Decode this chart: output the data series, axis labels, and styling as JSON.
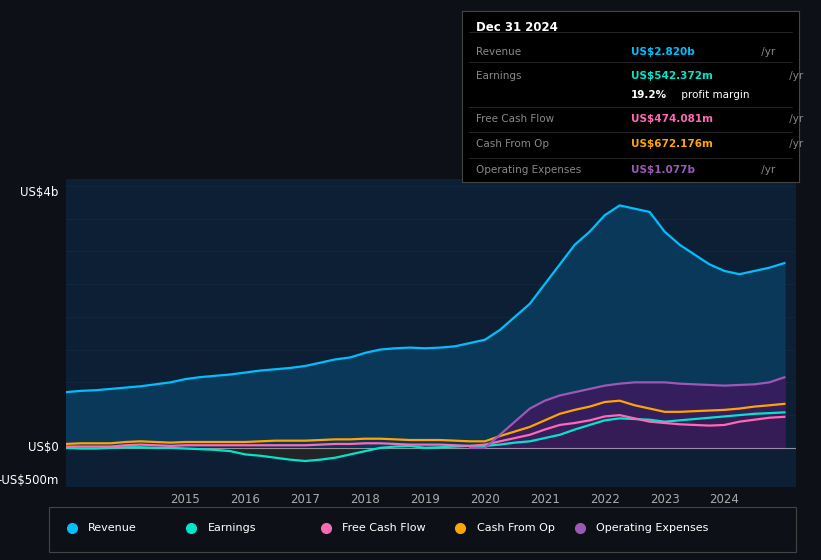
{
  "bg_color": "#0d1117",
  "plot_bg_color": "#0d1f35",
  "title": "Dec 31 2024",
  "info_box_rows": [
    {
      "label": "Revenue",
      "value": "US$2.820b",
      "value_color": "#00bfff"
    },
    {
      "label": "Earnings",
      "value": "US$542.372m",
      "value_color": "#00e5cc"
    },
    {
      "label": "",
      "value": "19.2% profit margin",
      "value_color": "#ffffff"
    },
    {
      "label": "Free Cash Flow",
      "value": "US$474.081m",
      "value_color": "#ff69b4"
    },
    {
      "label": "Cash From Op",
      "value": "US$672.176m",
      "value_color": "#ffa500"
    },
    {
      "label": "Operating Expenses",
      "value": "US$1.077b",
      "value_color": "#9b59b6"
    }
  ],
  "ylabel_top": "US$4b",
  "ylabel_zero": "US$0",
  "ylabel_bottom": "-US$500m",
  "x_ticks": [
    2015,
    2016,
    2017,
    2018,
    2019,
    2020,
    2021,
    2022,
    2023,
    2024
  ],
  "revenue": {
    "color": "#00bfff",
    "fill_color": "#0a3a5c",
    "x": [
      2013.0,
      2013.25,
      2013.5,
      2013.75,
      2014.0,
      2014.25,
      2014.5,
      2014.75,
      2015.0,
      2015.25,
      2015.5,
      2015.75,
      2016.0,
      2016.25,
      2016.5,
      2016.75,
      2017.0,
      2017.25,
      2017.5,
      2017.75,
      2018.0,
      2018.25,
      2018.5,
      2018.75,
      2019.0,
      2019.25,
      2019.5,
      2019.75,
      2020.0,
      2020.25,
      2020.5,
      2020.75,
      2021.0,
      2021.25,
      2021.5,
      2021.75,
      2022.0,
      2022.25,
      2022.5,
      2022.75,
      2023.0,
      2023.25,
      2023.5,
      2023.75,
      2024.0,
      2024.25,
      2024.5,
      2024.75,
      2025.0
    ],
    "y": [
      0.85,
      0.87,
      0.88,
      0.9,
      0.92,
      0.94,
      0.97,
      1.0,
      1.05,
      1.08,
      1.1,
      1.12,
      1.15,
      1.18,
      1.2,
      1.22,
      1.25,
      1.3,
      1.35,
      1.38,
      1.45,
      1.5,
      1.52,
      1.53,
      1.52,
      1.53,
      1.55,
      1.6,
      1.65,
      1.8,
      2.0,
      2.2,
      2.5,
      2.8,
      3.1,
      3.3,
      3.55,
      3.7,
      3.65,
      3.6,
      3.3,
      3.1,
      2.95,
      2.8,
      2.7,
      2.65,
      2.7,
      2.75,
      2.82
    ]
  },
  "earnings": {
    "color": "#00e5cc",
    "fill_color": "#0a2a2a",
    "x": [
      2013.0,
      2013.25,
      2013.5,
      2013.75,
      2014.0,
      2014.25,
      2014.5,
      2014.75,
      2015.0,
      2015.25,
      2015.5,
      2015.75,
      2016.0,
      2016.25,
      2016.5,
      2016.75,
      2017.0,
      2017.25,
      2017.5,
      2017.75,
      2018.0,
      2018.25,
      2018.5,
      2018.75,
      2019.0,
      2019.25,
      2019.5,
      2019.75,
      2020.0,
      2020.25,
      2020.5,
      2020.75,
      2021.0,
      2021.25,
      2021.5,
      2021.75,
      2022.0,
      2022.25,
      2022.5,
      2022.75,
      2023.0,
      2023.25,
      2023.5,
      2023.75,
      2024.0,
      2024.25,
      2024.5,
      2024.75,
      2025.0
    ],
    "y": [
      0.0,
      -0.01,
      -0.01,
      0.0,
      0.01,
      0.01,
      0.0,
      0.0,
      -0.01,
      -0.02,
      -0.03,
      -0.05,
      -0.1,
      -0.12,
      -0.15,
      -0.18,
      -0.2,
      -0.18,
      -0.15,
      -0.1,
      -0.05,
      0.0,
      0.02,
      0.03,
      0.0,
      0.01,
      0.02,
      0.03,
      0.03,
      0.05,
      0.08,
      0.1,
      0.15,
      0.2,
      0.28,
      0.35,
      0.42,
      0.45,
      0.44,
      0.43,
      0.4,
      0.42,
      0.44,
      0.46,
      0.48,
      0.5,
      0.52,
      0.53,
      0.542
    ]
  },
  "free_cash_flow": {
    "color": "#ff69b4",
    "x": [
      2013.0,
      2013.25,
      2013.5,
      2013.75,
      2014.0,
      2014.25,
      2014.5,
      2014.75,
      2015.0,
      2015.25,
      2015.5,
      2015.75,
      2016.0,
      2016.25,
      2016.5,
      2016.75,
      2017.0,
      2017.25,
      2017.5,
      2017.75,
      2018.0,
      2018.25,
      2018.5,
      2018.75,
      2019.0,
      2019.25,
      2019.5,
      2019.75,
      2020.0,
      2020.25,
      2020.5,
      2020.75,
      2021.0,
      2021.25,
      2021.5,
      2021.75,
      2022.0,
      2022.25,
      2022.5,
      2022.75,
      2023.0,
      2023.25,
      2023.5,
      2023.75,
      2024.0,
      2024.25,
      2024.5,
      2024.75,
      2025.0
    ],
    "y": [
      0.02,
      0.02,
      0.02,
      0.02,
      0.04,
      0.05,
      0.04,
      0.03,
      0.04,
      0.04,
      0.04,
      0.04,
      0.04,
      0.04,
      0.04,
      0.04,
      0.04,
      0.05,
      0.06,
      0.06,
      0.07,
      0.07,
      0.06,
      0.05,
      0.05,
      0.05,
      0.04,
      0.03,
      0.05,
      0.1,
      0.15,
      0.2,
      0.28,
      0.35,
      0.38,
      0.42,
      0.48,
      0.5,
      0.45,
      0.4,
      0.38,
      0.36,
      0.35,
      0.34,
      0.35,
      0.4,
      0.43,
      0.46,
      0.474
    ]
  },
  "cash_from_op": {
    "color": "#ffa500",
    "x": [
      2013.0,
      2013.25,
      2013.5,
      2013.75,
      2014.0,
      2014.25,
      2014.5,
      2014.75,
      2015.0,
      2015.25,
      2015.5,
      2015.75,
      2016.0,
      2016.25,
      2016.5,
      2016.75,
      2017.0,
      2017.25,
      2017.5,
      2017.75,
      2018.0,
      2018.25,
      2018.5,
      2018.75,
      2019.0,
      2019.25,
      2019.5,
      2019.75,
      2020.0,
      2020.25,
      2020.5,
      2020.75,
      2021.0,
      2021.25,
      2021.5,
      2021.75,
      2022.0,
      2022.25,
      2022.5,
      2022.75,
      2023.0,
      2023.25,
      2023.5,
      2023.75,
      2024.0,
      2024.25,
      2024.5,
      2024.75,
      2025.0
    ],
    "y": [
      0.06,
      0.07,
      0.07,
      0.07,
      0.09,
      0.1,
      0.09,
      0.08,
      0.09,
      0.09,
      0.09,
      0.09,
      0.09,
      0.1,
      0.11,
      0.11,
      0.11,
      0.12,
      0.13,
      0.13,
      0.14,
      0.14,
      0.13,
      0.12,
      0.12,
      0.12,
      0.11,
      0.1,
      0.1,
      0.18,
      0.25,
      0.32,
      0.42,
      0.52,
      0.58,
      0.63,
      0.7,
      0.72,
      0.65,
      0.6,
      0.55,
      0.55,
      0.56,
      0.57,
      0.58,
      0.6,
      0.63,
      0.65,
      0.672
    ]
  },
  "operating_expenses": {
    "color": "#9b59b6",
    "fill_color": "#3d1a5e",
    "x": [
      2019.75,
      2020.0,
      2020.25,
      2020.5,
      2020.75,
      2021.0,
      2021.25,
      2021.5,
      2021.75,
      2022.0,
      2022.25,
      2022.5,
      2022.75,
      2023.0,
      2023.25,
      2023.5,
      2023.75,
      2024.0,
      2024.25,
      2024.5,
      2024.75,
      2025.0
    ],
    "y": [
      0.0,
      0.0,
      0.2,
      0.4,
      0.6,
      0.72,
      0.8,
      0.85,
      0.9,
      0.95,
      0.98,
      1.0,
      1.0,
      1.0,
      0.98,
      0.97,
      0.96,
      0.95,
      0.96,
      0.97,
      1.0,
      1.077
    ]
  },
  "ylim": [
    -0.6,
    4.1
  ],
  "xlim": [
    2013.0,
    2025.2
  ],
  "legend": [
    {
      "label": "Revenue",
      "color": "#00bfff"
    },
    {
      "label": "Earnings",
      "color": "#00e5cc"
    },
    {
      "label": "Free Cash Flow",
      "color": "#ff69b4"
    },
    {
      "label": "Cash From Op",
      "color": "#ffa500"
    },
    {
      "label": "Operating Expenses",
      "color": "#9b59b6"
    }
  ]
}
